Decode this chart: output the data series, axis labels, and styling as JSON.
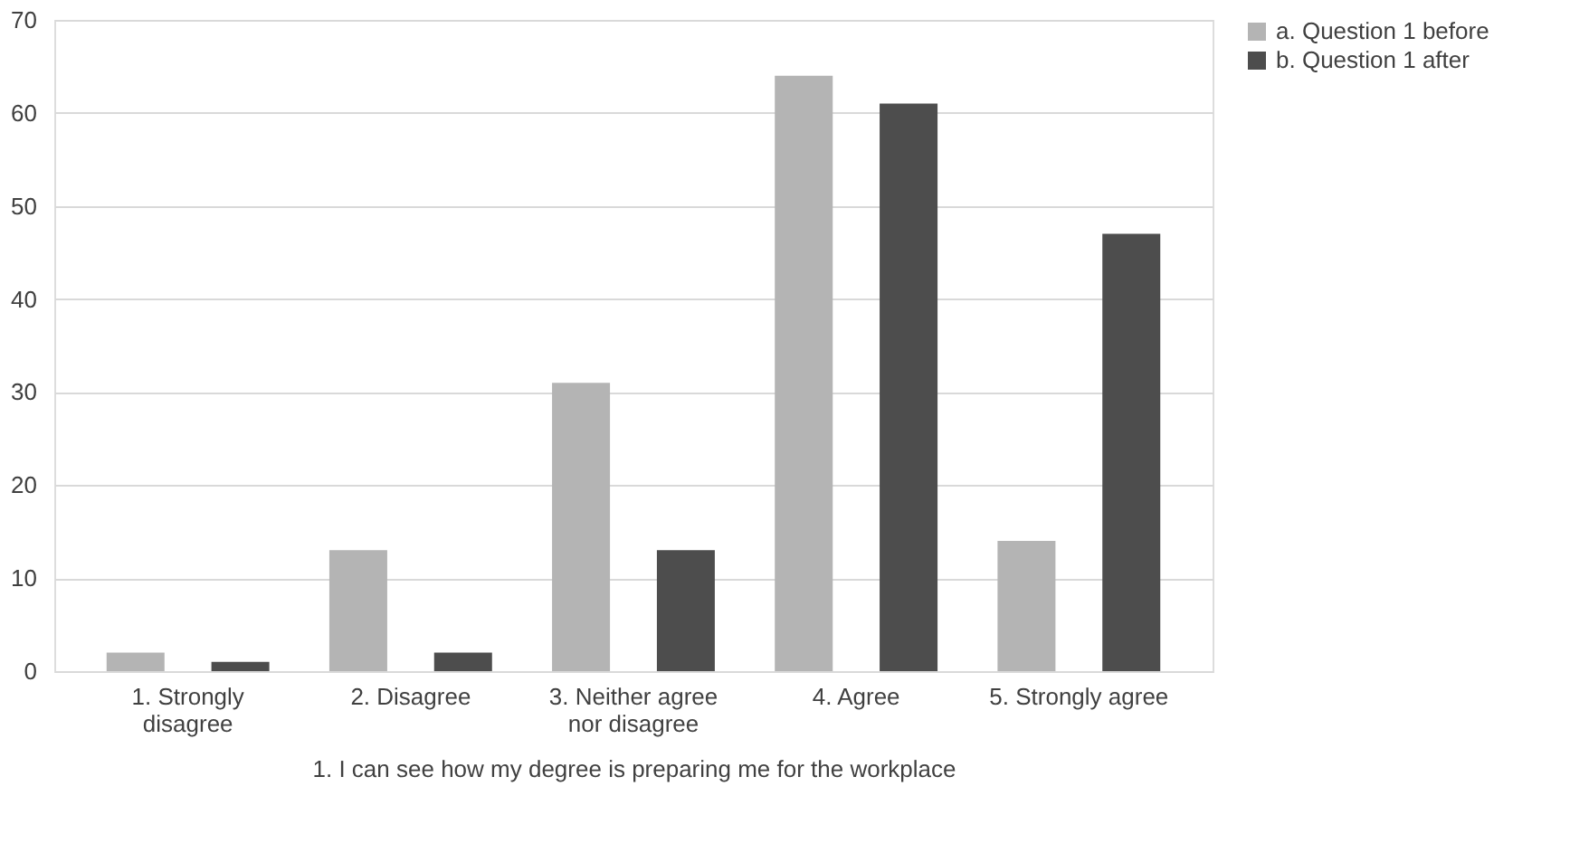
{
  "chart_data": {
    "type": "bar",
    "xlabel": "1. I can see how my degree is preparing me for the workplace",
    "categories": [
      "1. Strongly disagree",
      "2. Disagree",
      "3. Neither agree nor disagree",
      "4. Agree",
      "5. Strongly agree"
    ],
    "series": [
      {
        "name": "a. Question 1 before",
        "color": "#b4b4b4",
        "values": [
          2,
          13,
          31,
          64,
          14
        ]
      },
      {
        "name": "b. Question 1 after",
        "color": "#4d4d4d",
        "values": [
          1,
          2,
          13,
          61,
          47
        ]
      }
    ],
    "ylim": [
      0,
      70
    ],
    "yticks": [
      0,
      10,
      20,
      30,
      40,
      50,
      60,
      70
    ],
    "grid": "y",
    "legend": "right"
  }
}
